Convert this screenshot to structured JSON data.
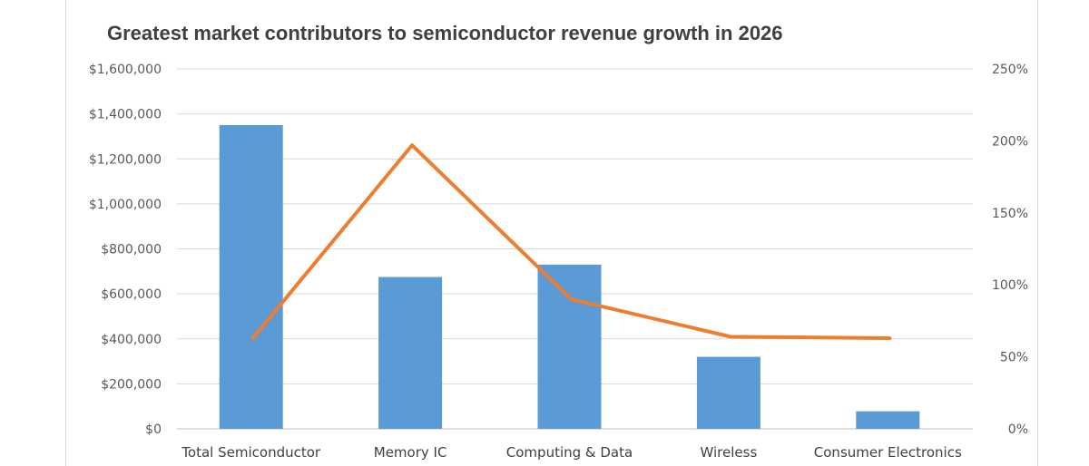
{
  "chart_data": {
    "type": "bar",
    "title": "Greatest market contributors to semiconductor revenue growth in 2026",
    "categories": [
      "Total Semiconductor",
      "Memory IC",
      "Computing & Data",
      "Wireless",
      "Consumer Electronics"
    ],
    "series": [
      {
        "type": "bar",
        "axis": "left",
        "color": "#5b9bd5",
        "values": [
          1350000,
          675000,
          730000,
          320000,
          78000
        ]
      },
      {
        "type": "line",
        "axis": "right",
        "color": "#ed7d31",
        "values": [
          0.63,
          1.97,
          0.9,
          0.64,
          0.63
        ]
      }
    ],
    "y_left": {
      "range": [
        0,
        1600000
      ],
      "ticks": [
        "$0",
        "$200,000",
        "$400,000",
        "$600,000",
        "$800,000",
        "$1,000,000",
        "$1,200,000",
        "$1,400,000",
        "$1,600,000"
      ]
    },
    "y_right": {
      "range": [
        0,
        2.5
      ],
      "ticks": [
        "0%",
        "50%",
        "100%",
        "150%",
        "200%",
        "250%"
      ]
    },
    "grid": true,
    "legend": "none"
  }
}
